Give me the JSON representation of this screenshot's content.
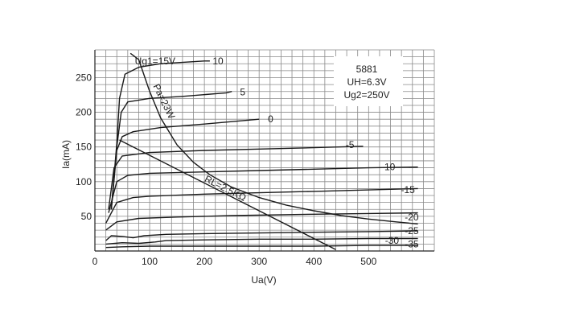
{
  "chart_data": {
    "type": "line",
    "title": "",
    "xlabel": "Ua(V)",
    "ylabel": "Ia(mA)",
    "xlim": [
      0,
      620
    ],
    "ylim": [
      0,
      290
    ],
    "x_ticks": [
      0,
      100,
      200,
      300,
      400,
      500
    ],
    "y_ticks": [
      50,
      100,
      150,
      200,
      250
    ],
    "grid": true,
    "info_box": [
      "5881",
      "UH=6.3V",
      "Ug2=250V"
    ],
    "series": [
      {
        "name": "10",
        "label": "10",
        "points": [
          [
            30,
            60
          ],
          [
            40,
            155
          ],
          [
            45,
            220
          ],
          [
            55,
            255
          ],
          [
            80,
            265
          ],
          [
            120,
            270
          ],
          [
            200,
            274
          ],
          [
            210,
            274
          ]
        ]
      },
      {
        "name": "5",
        "label": "5",
        "points": [
          [
            30,
            60
          ],
          [
            40,
            150
          ],
          [
            48,
            200
          ],
          [
            60,
            215
          ],
          [
            100,
            220
          ],
          [
            160,
            223
          ],
          [
            240,
            228
          ],
          [
            250,
            230
          ]
        ]
      },
      {
        "name": "0",
        "label": "0",
        "points": [
          [
            30,
            60
          ],
          [
            40,
            145
          ],
          [
            50,
            165
          ],
          [
            70,
            172
          ],
          [
            120,
            178
          ],
          [
            200,
            183
          ],
          [
            300,
            190
          ]
        ]
      },
      {
        "name": "-5",
        "label": "-5",
        "points": [
          [
            25,
            60
          ],
          [
            35,
            120
          ],
          [
            50,
            137
          ],
          [
            100,
            142
          ],
          [
            200,
            145
          ],
          [
            300,
            147
          ],
          [
            400,
            149
          ],
          [
            490,
            151
          ]
        ]
      },
      {
        "name": "-10",
        "label": "-10",
        "points": [
          [
            25,
            55
          ],
          [
            40,
            100
          ],
          [
            60,
            109
          ],
          [
            100,
            112
          ],
          [
            200,
            114
          ],
          [
            300,
            116
          ],
          [
            400,
            118
          ],
          [
            500,
            120
          ],
          [
            590,
            121
          ]
        ]
      },
      {
        "name": "-15",
        "label": "-15",
        "points": [
          [
            20,
            40
          ],
          [
            40,
            70
          ],
          [
            70,
            77
          ],
          [
            100,
            79
          ],
          [
            200,
            82
          ],
          [
            300,
            84
          ],
          [
            400,
            86
          ],
          [
            500,
            88
          ],
          [
            590,
            90
          ]
        ]
      },
      {
        "name": "-20",
        "label": "-20",
        "points": [
          [
            20,
            30
          ],
          [
            40,
            42
          ],
          [
            80,
            47
          ],
          [
            150,
            49
          ],
          [
            250,
            51
          ],
          [
            400,
            53
          ],
          [
            500,
            54
          ],
          [
            590,
            55
          ]
        ]
      },
      {
        "name": "-25",
        "label": "-25",
        "points": [
          [
            20,
            15
          ],
          [
            30,
            22
          ],
          [
            50,
            21
          ],
          [
            70,
            19
          ],
          [
            90,
            22
          ],
          [
            130,
            24
          ],
          [
            200,
            25
          ],
          [
            300,
            26
          ],
          [
            400,
            27
          ],
          [
            500,
            28
          ],
          [
            590,
            29
          ]
        ]
      },
      {
        "name": "-30",
        "label": "-30",
        "points": [
          [
            20,
            10
          ],
          [
            50,
            12
          ],
          [
            80,
            11
          ],
          [
            110,
            13
          ],
          [
            130,
            15
          ],
          [
            200,
            16
          ],
          [
            300,
            17
          ],
          [
            400,
            17
          ],
          [
            500,
            18
          ],
          [
            590,
            18
          ]
        ]
      },
      {
        "name": "-35",
        "label": "-35",
        "points": [
          [
            20,
            5
          ],
          [
            50,
            6
          ],
          [
            100,
            7
          ],
          [
            200,
            7
          ],
          [
            300,
            7
          ],
          [
            400,
            7
          ],
          [
            500,
            8
          ],
          [
            590,
            8
          ]
        ]
      }
    ],
    "curve_label_positions": [
      {
        "label": "10",
        "x": 215,
        "y": 274
      },
      {
        "label": "5",
        "x": 265,
        "y": 229
      },
      {
        "label": "0",
        "x": 316,
        "y": 190
      },
      {
        "label": "-5",
        "x": 458,
        "y": 153
      },
      {
        "label": "-10",
        "x": 523,
        "y": 121
      },
      {
        "label": "-15",
        "x": 559,
        "y": 88
      },
      {
        "label": "-20",
        "x": 566,
        "y": 49
      },
      {
        "label": "-25",
        "x": 566,
        "y": 29
      },
      {
        "label": "-30",
        "x": 530,
        "y": 15
      },
      {
        "label": "-35",
        "x": 566,
        "y": 10
      }
    ],
    "ug1_prefix": "Ug1=15V",
    "pa_curve": {
      "label": "Pa=23W",
      "points": [
        [
          65,
          285
        ],
        [
          80,
          276
        ],
        [
          100,
          230
        ],
        [
          120,
          192
        ],
        [
          150,
          153
        ],
        [
          180,
          128
        ],
        [
          210,
          110
        ],
        [
          250,
          92
        ],
        [
          300,
          77
        ],
        [
          350,
          66
        ],
        [
          400,
          58
        ],
        [
          450,
          51
        ],
        [
          500,
          46
        ],
        [
          550,
          42
        ],
        [
          590,
          39
        ]
      ]
    },
    "load_line": {
      "label": "RL=2.5KΩ",
      "points": [
        [
          45,
          160
        ],
        [
          420,
          10
        ],
        [
          440,
          2
        ]
      ]
    }
  }
}
